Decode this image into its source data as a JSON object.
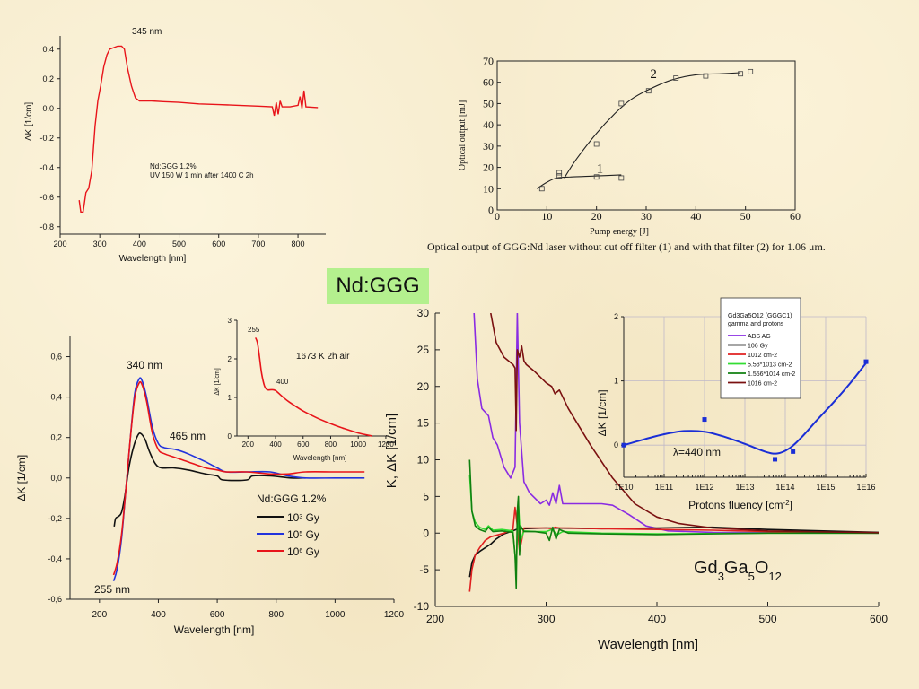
{
  "slide": {
    "title": "Nd:GGG",
    "background": "#f7ecce",
    "title_bg": "#b4f08e"
  },
  "chart_data": [
    {
      "id": "uv-induced-absorption",
      "type": "line",
      "title": "",
      "xlabel": "Wavelength [nm]",
      "ylabel": "ΔK [1/cm]",
      "xlim": [
        200,
        870
      ],
      "ylim": [
        -0.85,
        0.55
      ],
      "xticks": [
        200,
        300,
        400,
        500,
        600,
        700,
        800
      ],
      "yticks": [
        -0.8,
        -0.6,
        -0.4,
        -0.2,
        0.0,
        0.2,
        0.4
      ],
      "ytick_labels": [
        "-0.8",
        "-0.6",
        "-0.4",
        "-0.2",
        "0.0",
        "0.2",
        "0.4"
      ],
      "annotations": [
        "345 nm",
        "Nd:GGG 1.2%",
        "UV 150 W 1 min after 1400 C 2h"
      ],
      "series": [
        {
          "name": "UV 150 W",
          "color": "#e8141a",
          "x": [
            248,
            252,
            258,
            265,
            272,
            280,
            288,
            295,
            302,
            310,
            318,
            325,
            335,
            345,
            355,
            362,
            370,
            380,
            390,
            400,
            410,
            430,
            460,
            500,
            550,
            600,
            650,
            700,
            735,
            740,
            745,
            750,
            755,
            760,
            780,
            800,
            805,
            810,
            815,
            820,
            850
          ],
          "y": [
            -0.62,
            -0.7,
            -0.7,
            -0.57,
            -0.54,
            -0.42,
            -0.12,
            0.05,
            0.15,
            0.28,
            0.36,
            0.4,
            0.41,
            0.42,
            0.42,
            0.4,
            0.27,
            0.15,
            0.07,
            0.05,
            0.05,
            0.05,
            0.045,
            0.04,
            0.03,
            0.025,
            0.02,
            0.015,
            0.01,
            -0.05,
            0.04,
            -0.04,
            0.05,
            0.01,
            0.01,
            0.02,
            0.08,
            0.0,
            0.12,
            0.01,
            0.005
          ]
        }
      ]
    },
    {
      "id": "laser-output",
      "type": "scatter",
      "title": "",
      "xlabel": "Pump energy [J]",
      "ylabel": "Optical output [mJ]",
      "xlim": [
        0,
        60
      ],
      "ylim": [
        0,
        70
      ],
      "xticks": [
        0,
        10,
        20,
        30,
        40,
        50,
        60
      ],
      "yticks": [
        0,
        10,
        20,
        30,
        40,
        50,
        60,
        70
      ],
      "caption": "Optical output of GGG:Nd laser without cut off filter (1) and with that filter (2) for 1.06 μm.",
      "series": [
        {
          "name": "1",
          "points_x": [
            9,
            12.5,
            20,
            25
          ],
          "points_y": [
            10,
            16,
            15.5,
            15
          ],
          "fit_x": [
            8,
            10,
            12,
            15,
            20,
            25
          ],
          "fit_y": [
            10,
            13,
            15,
            15.5,
            16,
            16.5
          ]
        },
        {
          "name": "2",
          "points_x": [
            12.5,
            20,
            25,
            30.5,
            36,
            42,
            49,
            51
          ],
          "points_y": [
            17.5,
            31,
            50,
            56,
            62,
            63,
            64,
            65
          ],
          "fit_x": [
            13.5,
            16,
            20,
            24,
            27,
            30,
            35,
            40,
            45,
            49
          ],
          "fit_y": [
            15,
            24,
            36,
            46,
            52,
            56,
            61,
            63.5,
            64,
            64.5
          ]
        }
      ]
    },
    {
      "id": "gamma-irradiation",
      "type": "line",
      "title": "",
      "xlabel": "Wavelength [nm]",
      "ylabel": "ΔK [1/cm]",
      "xlim": [
        100,
        1200
      ],
      "ylim": [
        -0.6,
        0.7
      ],
      "xticks": [
        200,
        400,
        600,
        800,
        1000,
        1200
      ],
      "yticks": [
        -0.6,
        -0.4,
        -0.2,
        0.0,
        0.2,
        0.4,
        0.6
      ],
      "ytick_labels": [
        "-0,6",
        "-0,4",
        "-0,2",
        "0,0",
        "0,2",
        "0,4",
        "0,6"
      ],
      "annotations": [
        "340 nm",
        "465 nm",
        "255 nm"
      ],
      "legend_title": "Nd:GGG 1.2%",
      "legend": [
        {
          "base": "10",
          "exp": "3",
          "unit": " Gy",
          "color": "#111111"
        },
        {
          "base": "10",
          "exp": "5",
          "unit": " Gy",
          "color": "#2233dd"
        },
        {
          "base": "10",
          "exp": "6",
          "unit": " Gy",
          "color": "#e8141a"
        }
      ],
      "series": [
        {
          "name": "10^3 Gy",
          "color": "#111111",
          "x": [
            250,
            255,
            265,
            275,
            285,
            300,
            315,
            330,
            340,
            355,
            370,
            390,
            410,
            450,
            500,
            560,
            600,
            620,
            700,
            720,
            780,
            850,
            900
          ],
          "y": [
            -0.24,
            -0.2,
            -0.19,
            -0.17,
            -0.1,
            0.05,
            0.15,
            0.21,
            0.22,
            0.19,
            0.13,
            0.07,
            0.05,
            0.05,
            0.04,
            0.02,
            0.01,
            -0.01,
            -0.01,
            0.01,
            0.01,
            0.0,
            0.0
          ]
        },
        {
          "name": "10^5 Gy",
          "color": "#2233dd",
          "x": [
            248,
            260,
            275,
            290,
            305,
            320,
            335,
            345,
            360,
            380,
            400,
            420,
            460,
            500,
            560,
            600,
            630,
            700,
            780,
            840,
            900,
            1000,
            1100
          ],
          "y": [
            -0.51,
            -0.45,
            -0.3,
            -0.05,
            0.2,
            0.42,
            0.49,
            0.48,
            0.4,
            0.25,
            0.17,
            0.15,
            0.14,
            0.12,
            0.08,
            0.05,
            0.03,
            0.03,
            0.03,
            0.01,
            0.0,
            0.0,
            0.0
          ]
        },
        {
          "name": "10^6 Gy",
          "color": "#e8141a",
          "x": [
            248,
            260,
            275,
            290,
            305,
            320,
            335,
            345,
            360,
            380,
            400,
            420,
            460,
            500,
            560,
            600,
            630,
            700,
            780,
            840,
            900,
            1000,
            1100
          ],
          "y": [
            -0.48,
            -0.42,
            -0.28,
            -0.05,
            0.2,
            0.4,
            0.47,
            0.46,
            0.38,
            0.22,
            0.14,
            0.12,
            0.1,
            0.08,
            0.05,
            0.04,
            0.03,
            0.03,
            0.02,
            0.02,
            0.03,
            0.03,
            0.03
          ]
        }
      ]
    },
    {
      "id": "annealing-inset",
      "type": "line",
      "title": "",
      "xlabel": "Wavelength [nm]",
      "ylabel": "ΔK [1/cm]",
      "xlim": [
        100,
        1200
      ],
      "ylim": [
        0,
        3
      ],
      "xticks": [
        200,
        400,
        600,
        800,
        1000,
        1200
      ],
      "yticks": [
        0,
        1,
        2,
        3
      ],
      "annotations": [
        "255",
        "400",
        "1673 K 2h air"
      ],
      "series": [
        {
          "name": "1673 K 2h air",
          "color": "#e8141a",
          "x": [
            255,
            270,
            285,
            300,
            320,
            340,
            370,
            400,
            450,
            500,
            600,
            700,
            800,
            900,
            1000,
            1100
          ],
          "y": [
            2.55,
            2.4,
            2.0,
            1.6,
            1.3,
            1.2,
            1.2,
            1.18,
            1.02,
            0.88,
            0.65,
            0.47,
            0.32,
            0.19,
            0.08,
            0.0
          ]
        }
      ]
    },
    {
      "id": "gggc1-absorption",
      "type": "line",
      "title": "",
      "xlabel": "Wavelength [nm]",
      "ylabel": "K, ΔK [1/cm]",
      "xlim": [
        200,
        600
      ],
      "ylim": [
        -10,
        30
      ],
      "xticks": [
        200,
        300,
        400,
        500,
        600
      ],
      "yticks": [
        -10,
        -5,
        0,
        5,
        10,
        15,
        20,
        25,
        30
      ],
      "annotation_formula": {
        "parts": [
          [
            "Gd",
            ""
          ],
          [
            "3",
            "sub"
          ],
          [
            "Ga",
            ""
          ],
          [
            "5",
            "sub"
          ],
          [
            "O",
            ""
          ],
          [
            "12",
            "sub"
          ]
        ]
      },
      "series": [
        {
          "name": "ABS AG",
          "color": "#8a2be2",
          "x": [
            235,
            238,
            242,
            245,
            248,
            252,
            256,
            262,
            268,
            272,
            274,
            276,
            280,
            285,
            295,
            300,
            303,
            306,
            309,
            312,
            315,
            330,
            350,
            360,
            375,
            390,
            410,
            450,
            600
          ],
          "y": [
            30,
            21,
            17,
            16.5,
            16,
            13,
            12,
            9,
            7.5,
            9,
            30,
            15,
            7,
            5.5,
            4,
            4.5,
            3.8,
            5.5,
            4,
            6.5,
            4,
            4,
            4,
            3.8,
            2.5,
            1,
            0.3,
            0.1,
            0.0
          ]
        },
        {
          "name": "10^6 Gy",
          "color": "#111111",
          "x": [
            231,
            233,
            236,
            240,
            245,
            250,
            255,
            262,
            270,
            275,
            280,
            300,
            350,
            400,
            450,
            500,
            550,
            600
          ],
          "y": [
            -6,
            -4,
            -3,
            -2.5,
            -2,
            -1.5,
            -0.8,
            -0.1,
            0.3,
            0.6,
            0.6,
            0.7,
            0.6,
            0.7,
            0.8,
            0.5,
            0.3,
            0.1
          ]
        },
        {
          "name": "10^12 cm^-2",
          "color": "#e02020",
          "x": [
            231,
            233,
            236,
            240,
            245,
            250,
            255,
            262,
            270,
            272,
            274,
            276,
            278,
            280,
            290,
            300,
            305,
            308,
            312,
            320,
            350,
            400,
            450,
            500,
            600
          ],
          "y": [
            -8,
            -5,
            -3,
            -2,
            -1,
            -0.5,
            -0.3,
            0,
            0.5,
            3.5,
            1,
            -2.5,
            -1,
            0.7,
            0.7,
            0.7,
            0.6,
            0.8,
            0.7,
            0.7,
            0.6,
            0.5,
            0.4,
            0.2,
            0.05
          ]
        },
        {
          "name": "5.56*10^13 cm^-2",
          "color": "#33dd33",
          "x": [
            231,
            233,
            236,
            240,
            245,
            248,
            252,
            260,
            270,
            273,
            275,
            277,
            280,
            290,
            300,
            305,
            310,
            315,
            350,
            400,
            500,
            600
          ],
          "y": [
            8,
            3,
            1.5,
            0.8,
            0.5,
            1,
            0.4,
            0.5,
            0.3,
            -5,
            4,
            -1,
            0.3,
            0.2,
            0.2,
            0.5,
            -0.2,
            0.2,
            0.0,
            -0.1,
            0.0,
            0.0
          ]
        },
        {
          "name": "1.556*10^14 cm^-2",
          "color": "#108010",
          "x": [
            231,
            233,
            236,
            240,
            245,
            248,
            252,
            260,
            270,
            272,
            273,
            274,
            275,
            276,
            277,
            280,
            290,
            300,
            303,
            306,
            309,
            312,
            320,
            350,
            400,
            500,
            600
          ],
          "y": [
            10,
            3,
            1,
            0.5,
            0.2,
            0.8,
            0.2,
            0.3,
            0.1,
            -3,
            -7.5,
            3,
            5,
            -3,
            1,
            0.2,
            0.2,
            0.0,
            -1,
            0.8,
            -0.8,
            0.5,
            0.0,
            -0.1,
            -0.2,
            0.0,
            0.0
          ]
        },
        {
          "name": "10^16 cm^-2",
          "color": "#7a1010",
          "x": [
            250,
            255,
            262,
            270,
            272,
            273,
            274,
            276,
            278,
            280,
            282,
            290,
            300,
            305,
            308,
            312,
            320,
            340,
            360,
            380,
            400,
            420,
            450,
            500,
            550,
            600
          ],
          "y": [
            30,
            26,
            24,
            23,
            22.5,
            14,
            25,
            24,
            25.5,
            23.5,
            23,
            22,
            20.5,
            20,
            19,
            19.5,
            17,
            12,
            7.5,
            4,
            2.2,
            1.3,
            0.7,
            0.3,
            0.15,
            0.05
          ]
        }
      ]
    },
    {
      "id": "proton-fluency-inset",
      "type": "scatter",
      "title": "",
      "xlabel": "Protons fluency [cm^-2]",
      "ylabel": "ΔK [1/cm]",
      "xscale": "log",
      "xlim": [
        10000000000.0,
        1e+16
      ],
      "ylim": [
        -0.5,
        2
      ],
      "xticks": [
        10000000000.0,
        100000000000.0,
        1000000000000.0,
        10000000000000.0,
        100000000000000.0,
        1000000000000000.0,
        1e+16
      ],
      "xtick_labels": [
        "1E10",
        "1E11",
        "1E12",
        "1E13",
        "1E14",
        "1E15",
        "1E16"
      ],
      "yticks": [
        0,
        1,
        2
      ],
      "grid": true,
      "annotations": [
        "λ=440 nm"
      ],
      "legend_title_lines": [
        "Gd3Ga5O12 (GGGC1)",
        "gamma and protons"
      ],
      "legend": [
        {
          "label": "ABS AG",
          "color": "#8a2be2"
        },
        {
          "label": "10^6 Gy",
          "color": "#111111"
        },
        {
          "label": "10^12 cm^-2",
          "color": "#e02020"
        },
        {
          "label": "5.56*10^13 cm^-2",
          "color": "#33dd33"
        },
        {
          "label": "1.556*10^14 cm^-2",
          "color": "#108010"
        },
        {
          "label": "10^16 cm^-2",
          "color": "#7a1010"
        }
      ],
      "series": [
        {
          "name": "ΔK at 440 nm",
          "color": "#1a2ed6",
          "points_log10x": [
            10,
            12,
            13.745,
            14.192,
            16
          ],
          "points_y": [
            0.0,
            0.4,
            -0.22,
            -0.1,
            1.3
          ],
          "fit_log10x": [
            10,
            10.5,
            11,
            11.5,
            12,
            12.5,
            13,
            13.5,
            13.8,
            14.1,
            14.4,
            14.8,
            15.2,
            15.6,
            16
          ],
          "fit_y": [
            0.0,
            0.09,
            0.17,
            0.22,
            0.21,
            0.13,
            0.02,
            -0.1,
            -0.13,
            -0.05,
            0.12,
            0.4,
            0.67,
            0.96,
            1.28
          ]
        }
      ]
    }
  ]
}
